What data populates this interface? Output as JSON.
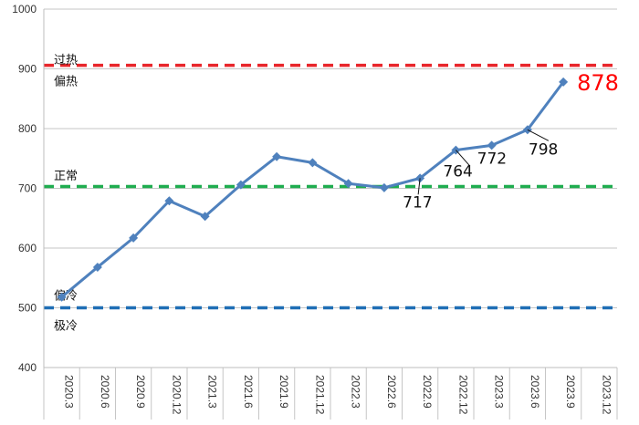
{
  "chart_data": {
    "type": "line",
    "title": "",
    "xlabel": "",
    "ylabel": "",
    "ylim": [
      400,
      1000
    ],
    "yticks": [
      400,
      500,
      600,
      700,
      800,
      900,
      1000
    ],
    "categories": [
      "2020.3",
      "2020.6",
      "2020.9",
      "2020.12",
      "2021.3",
      "2021.6",
      "2021.9",
      "2021.12",
      "2022.3",
      "2022.6",
      "2022.9",
      "2022.12",
      "2023.3",
      "2023.6",
      "2023.9",
      "2023.12"
    ],
    "series": [
      {
        "color": "#4f81bd",
        "values": [
          518,
          568,
          617,
          679,
          653,
          706,
          753,
          743,
          708,
          701,
          717,
          764,
          772,
          798,
          878,
          null
        ]
      }
    ],
    "reference_lines": [
      {
        "value": 906,
        "color": "#e8262b"
      },
      {
        "value": 703,
        "color": "#1fad4f"
      },
      {
        "value": 500,
        "color": "#1f6eb5"
      }
    ],
    "zone_labels": [
      {
        "text": "过热",
        "value": 916
      },
      {
        "text": "偏热",
        "value": 880
      },
      {
        "text": "正常",
        "value": 722
      },
      {
        "text": "偏冷",
        "value": 521
      },
      {
        "text": "极冷",
        "value": 471
      }
    ],
    "data_labels": [
      {
        "index": 10,
        "text": "717",
        "highlight": false
      },
      {
        "index": 11,
        "text": "764",
        "highlight": false
      },
      {
        "index": 12,
        "text": "772",
        "highlight": false
      },
      {
        "index": 13,
        "text": "798",
        "highlight": false
      },
      {
        "index": 14,
        "text": "878",
        "highlight": true
      }
    ],
    "grid": true,
    "legend": "none"
  }
}
